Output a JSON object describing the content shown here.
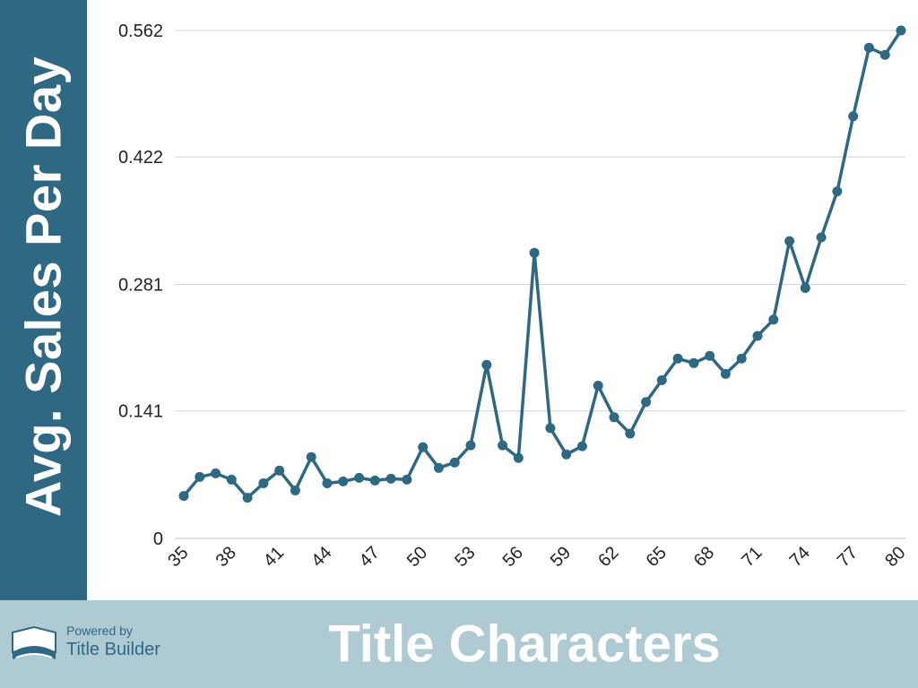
{
  "chart_data": {
    "type": "line",
    "xlabel": "Title Characters",
    "ylabel": "Avg. Sales Per Day",
    "x": [
      35,
      36,
      37,
      38,
      39,
      40,
      41,
      42,
      43,
      44,
      45,
      46,
      47,
      48,
      49,
      50,
      51,
      52,
      53,
      54,
      55,
      56,
      57,
      58,
      59,
      60,
      61,
      62,
      63,
      64,
      65,
      66,
      67,
      68,
      69,
      70,
      71,
      72,
      73,
      74,
      75,
      76,
      77,
      78,
      79,
      80
    ],
    "series": [
      {
        "values": [
          0.047,
          0.068,
          0.072,
          0.065,
          0.045,
          0.061,
          0.075,
          0.053,
          0.09,
          0.061,
          0.063,
          0.067,
          0.064,
          0.066,
          0.065,
          0.101,
          0.078,
          0.084,
          0.103,
          0.192,
          0.103,
          0.089,
          0.316,
          0.122,
          0.093,
          0.102,
          0.169,
          0.134,
          0.116,
          0.151,
          0.175,
          0.199,
          0.194,
          0.202,
          0.182,
          0.199,
          0.224,
          0.242,
          0.329,
          0.277,
          0.333,
          0.384,
          0.467,
          0.543,
          0.535,
          0.562
        ]
      }
    ],
    "yticks": [
      "0",
      "0.141",
      "0.281",
      "0.422",
      "0.562"
    ],
    "xticks": [
      "35",
      "38",
      "41",
      "44",
      "47",
      "50",
      "53",
      "56",
      "59",
      "62",
      "65",
      "68",
      "71",
      "74",
      "77",
      "80"
    ],
    "xlim": [
      35,
      80
    ],
    "ylim": [
      0,
      0.562
    ],
    "grid": true,
    "colors": {
      "line": "#2e6883",
      "grid": "#d4d4d4",
      "panel": "#2e6883",
      "footer": "#aecbd3"
    }
  },
  "branding": {
    "powered_by": "Powered by",
    "name": "Title Builder"
  }
}
